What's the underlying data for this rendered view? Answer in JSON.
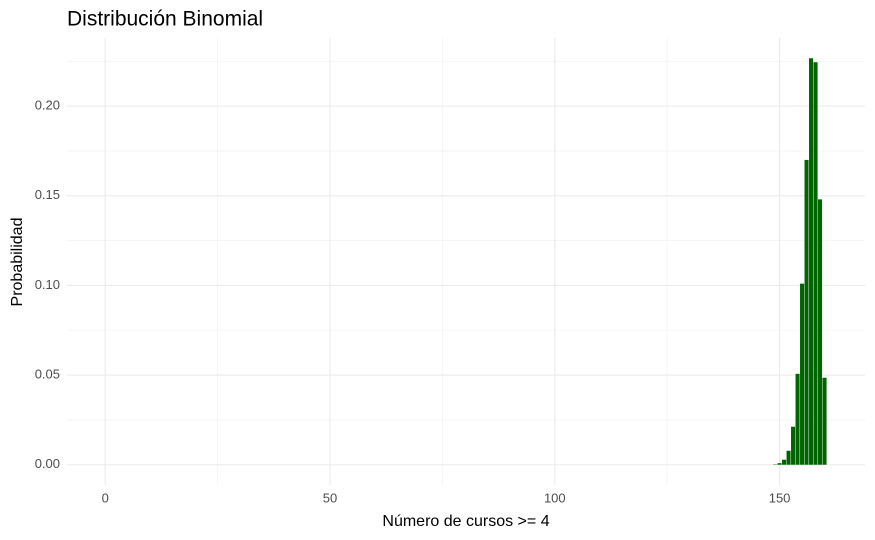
{
  "chart_data": {
    "type": "bar",
    "title": "Distribución Binomial",
    "x_label": "Número de cursos >= 4",
    "y_label": "Probabilidad",
    "x": [
      149,
      150,
      151,
      152,
      153,
      154,
      155,
      156,
      157,
      158,
      159,
      160
    ],
    "values": [
      0.0002,
      0.0009,
      0.0028,
      0.0078,
      0.0212,
      0.0507,
      0.101,
      0.17,
      0.2267,
      0.2245,
      0.148,
      0.0485
    ],
    "color": "#006400",
    "xlim": [
      -8.5,
      169
    ],
    "xticks": [
      0,
      50,
      100,
      150
    ],
    "xminor": [
      25,
      75,
      125
    ],
    "ylim": [
      -0.0113,
      0.238
    ],
    "yticks": [
      {
        "value": 0,
        "label": "0.00"
      },
      {
        "value": 0.05,
        "label": "0.05"
      },
      {
        "value": 0.1,
        "label": "0.10"
      },
      {
        "value": 0.15,
        "label": "0.15"
      },
      {
        "value": 0.2,
        "label": "0.20"
      }
    ],
    "yminor": [
      0.025,
      0.075,
      0.125,
      0.175,
      0.225
    ],
    "grid": true
  }
}
